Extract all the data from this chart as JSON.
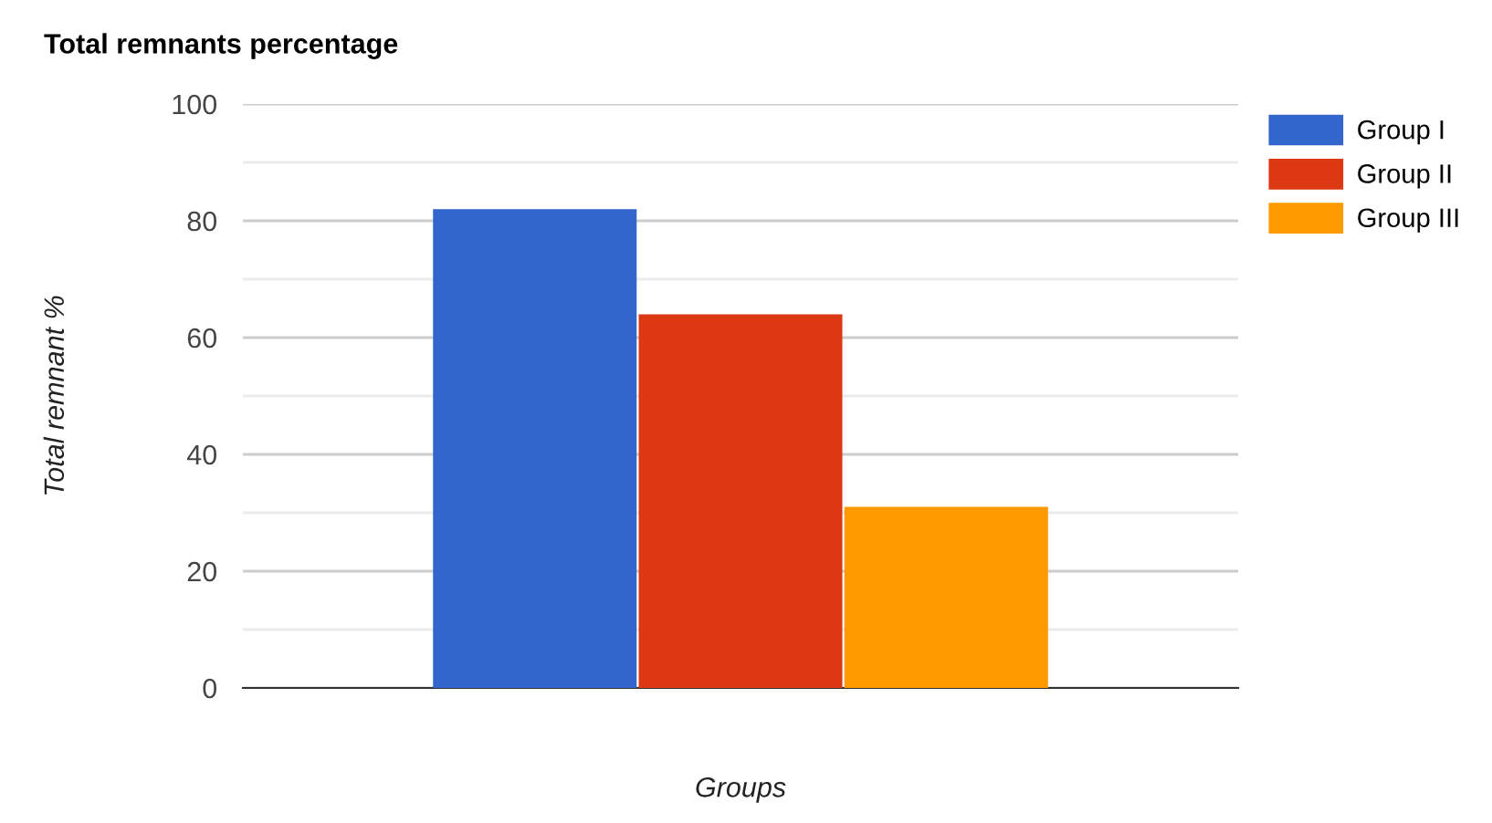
{
  "chart_data": {
    "type": "bar",
    "title": "Total remnants percentage",
    "xlabel": "Groups",
    "ylabel": "Total remnant %",
    "categories": [
      null
    ],
    "series": [
      {
        "name": "Group I",
        "color": "#3366cc",
        "values": [
          82
        ]
      },
      {
        "name": "Group II",
        "color": "#dc3912",
        "values": [
          64
        ]
      },
      {
        "name": "Group III",
        "color": "#ff9900",
        "values": [
          31
        ]
      }
    ],
    "ylim": [
      0,
      100
    ],
    "yticks": [
      0,
      {
        "value": 10,
        "label": null
      },
      20,
      {
        "value": 30,
        "label": null
      },
      40,
      {
        "value": 50,
        "label": null
      },
      60,
      {
        "value": 70,
        "label": null
      },
      80,
      {
        "value": 90,
        "label": null
      },
      100
    ],
    "grid": "y",
    "legend": "top right"
  }
}
